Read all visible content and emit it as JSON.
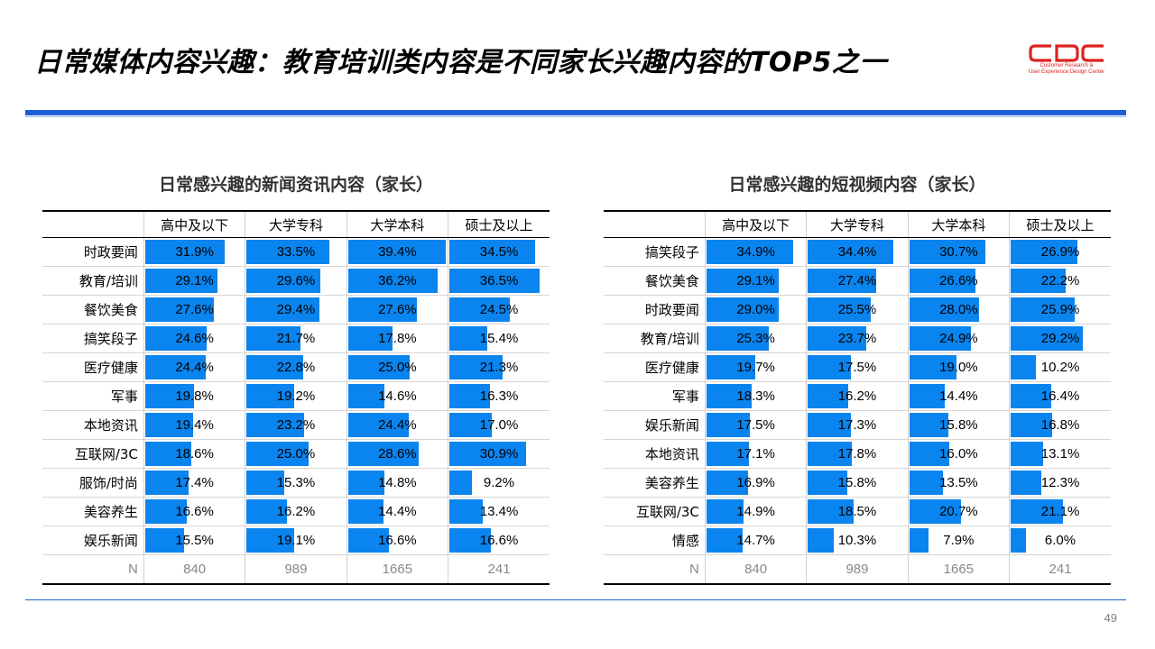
{
  "page": {
    "title": "日常媒体内容兴趣：教育培训类内容是不同家长兴趣内容的TOP5之一",
    "page_number": "49"
  },
  "logo": {
    "mark_text": "CDC",
    "line1": "Customer Research &",
    "line2": "User Experience Design Center",
    "color": "#dd2222"
  },
  "colors": {
    "bar": "#0a84ee",
    "rule": "#1f5fd6"
  },
  "chart_data": [
    {
      "type": "table",
      "title": "日常感兴趣的新闻资讯内容（家长）",
      "corner_label": "",
      "columns": [
        "高中及以下",
        "大学专科",
        "大学本科",
        "硕士及以上"
      ],
      "rows": [
        {
          "label": "时政要闻",
          "values": [
            31.9,
            33.5,
            39.4,
            34.5
          ]
        },
        {
          "label": "教育/培训",
          "values": [
            29.1,
            29.6,
            36.2,
            36.5
          ]
        },
        {
          "label": "餐饮美食",
          "values": [
            27.6,
            29.4,
            27.6,
            24.5
          ]
        },
        {
          "label": "搞笑段子",
          "values": [
            24.6,
            21.7,
            17.8,
            15.4
          ]
        },
        {
          "label": "医疗健康",
          "values": [
            24.4,
            22.8,
            25.0,
            21.3
          ]
        },
        {
          "label": "军事",
          "values": [
            19.8,
            19.2,
            14.6,
            16.3
          ]
        },
        {
          "label": "本地资讯",
          "values": [
            19.4,
            23.2,
            24.4,
            17.0
          ]
        },
        {
          "label": "互联网/3C",
          "values": [
            18.6,
            25.0,
            28.6,
            30.9
          ]
        },
        {
          "label": "服饰/时尚",
          "values": [
            17.4,
            15.3,
            14.8,
            9.2
          ]
        },
        {
          "label": "美容养生",
          "values": [
            16.6,
            16.2,
            14.4,
            13.4
          ]
        },
        {
          "label": "娱乐新闻",
          "values": [
            15.5,
            19.1,
            16.6,
            16.6
          ]
        }
      ],
      "n_label": "N",
      "n_values": [
        "840",
        "989",
        "1665",
        "241"
      ],
      "bar_max_percent": 40
    },
    {
      "type": "table",
      "title": "日常感兴趣的短视频内容（家长）",
      "corner_label": "",
      "columns": [
        "高中及以下",
        "大学专科",
        "大学本科",
        "硕士及以上"
      ],
      "rows": [
        {
          "label": "搞笑段子",
          "values": [
            34.9,
            34.4,
            30.7,
            26.9
          ]
        },
        {
          "label": "餐饮美食",
          "values": [
            29.1,
            27.4,
            26.6,
            22.2
          ]
        },
        {
          "label": "时政要闻",
          "values": [
            29.0,
            25.5,
            28.0,
            25.9
          ]
        },
        {
          "label": "教育/培训",
          "values": [
            25.3,
            23.7,
            24.9,
            29.2
          ]
        },
        {
          "label": "医疗健康",
          "values": [
            19.7,
            17.5,
            19.0,
            10.2
          ]
        },
        {
          "label": "军事",
          "values": [
            18.3,
            16.2,
            14.4,
            16.4
          ]
        },
        {
          "label": "娱乐新闻",
          "values": [
            17.5,
            17.3,
            15.8,
            16.8
          ]
        },
        {
          "label": "本地资讯",
          "values": [
            17.1,
            17.8,
            16.0,
            13.1
          ]
        },
        {
          "label": "美容养生",
          "values": [
            16.9,
            15.8,
            13.5,
            12.3
          ]
        },
        {
          "label": "互联网/3C",
          "values": [
            14.9,
            18.5,
            20.7,
            21.1
          ]
        },
        {
          "label": "情感",
          "values": [
            14.7,
            10.3,
            7.9,
            6.0
          ]
        }
      ],
      "n_label": "N",
      "n_values": [
        "840",
        "989",
        "1665",
        "241"
      ],
      "bar_max_percent": 40
    }
  ]
}
